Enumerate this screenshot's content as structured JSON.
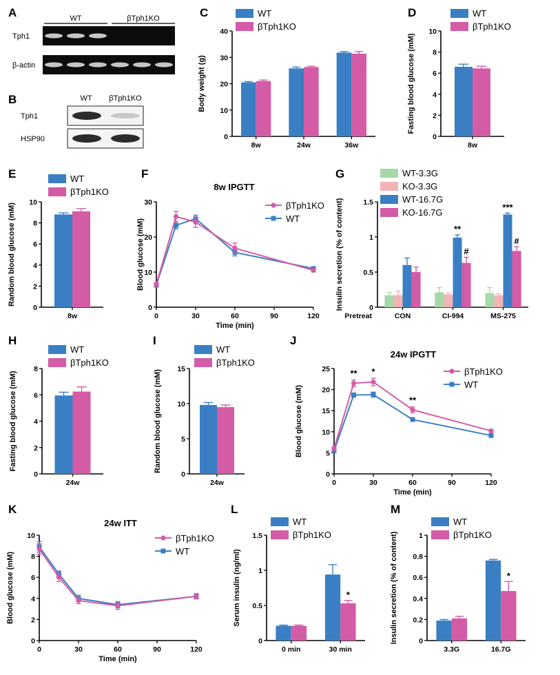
{
  "colors": {
    "wt": "#3a7fc4",
    "ko": "#d45ba6",
    "wt_low": "#a8d8a8",
    "ko_low": "#f2b4b4",
    "axis": "#000000"
  },
  "blots": [
    {
      "panel": "A",
      "groups": [
        "WT",
        "βTph1KO"
      ],
      "rows": [
        "Tph1",
        "β-actin"
      ],
      "lanes": [
        [
          true,
          true,
          true,
          false,
          false,
          false
        ],
        [
          true,
          true,
          true,
          true,
          true,
          true
        ]
      ]
    },
    {
      "panel": "B",
      "groups": [
        "WT",
        "βTph1KO"
      ],
      "rows": [
        "Tph1",
        "HSP90"
      ],
      "lanes": [
        [
          true,
          "faint"
        ],
        [
          true,
          true
        ]
      ]
    }
  ],
  "chart_data": [
    {
      "id": "C",
      "panel": "C",
      "type": "bar",
      "title": "",
      "xlabel": "",
      "ylabel": "Body weight (g)",
      "ylim": [
        0,
        40
      ],
      "yticks": [
        0,
        10,
        20,
        30,
        40
      ],
      "categories": [
        "8w",
        "24w",
        "36w"
      ],
      "legend": {
        "placement": "top-left",
        "entries": [
          "WT",
          "βTph1KO"
        ]
      },
      "series": [
        {
          "name": "WT",
          "color": "wt",
          "values": [
            20.5,
            25.8,
            31.8
          ],
          "errors": [
            0.3,
            0.5,
            0.4
          ]
        },
        {
          "name": "βTph1KO",
          "color": "ko",
          "values": [
            21.0,
            26.3,
            31.4
          ],
          "errors": [
            0.4,
            0.3,
            0.8
          ]
        }
      ],
      "annotations": []
    },
    {
      "id": "D",
      "panel": "D",
      "type": "bar",
      "title": "",
      "xlabel": "",
      "ylabel": "Fasting blood glucose (mM)",
      "ylim": [
        0,
        10
      ],
      "yticks": [
        0,
        2,
        4,
        6,
        8,
        10
      ],
      "categories": [
        "8w"
      ],
      "legend": {
        "placement": "top-left",
        "entries": [
          "WT",
          "βTph1KO"
        ]
      },
      "series": [
        {
          "name": "WT",
          "color": "wt",
          "values": [
            6.6
          ],
          "errors": [
            0.25
          ]
        },
        {
          "name": "βTph1KO",
          "color": "ko",
          "values": [
            6.45
          ],
          "errors": [
            0.2
          ]
        }
      ],
      "annotations": []
    },
    {
      "id": "E",
      "panel": "E",
      "type": "bar",
      "title": "",
      "xlabel": "",
      "ylabel": "Random blood glucose (mM)",
      "ylim": [
        0,
        10
      ],
      "yticks": [
        0,
        2,
        4,
        6,
        8,
        10
      ],
      "categories": [
        "8w"
      ],
      "legend": {
        "placement": "top-left",
        "entries": [
          "WT",
          "βTph1KO"
        ]
      },
      "series": [
        {
          "name": "WT",
          "color": "wt",
          "values": [
            8.8
          ],
          "errors": [
            0.15
          ]
        },
        {
          "name": "βTph1KO",
          "color": "ko",
          "values": [
            9.1
          ],
          "errors": [
            0.25
          ]
        }
      ],
      "annotations": []
    },
    {
      "id": "F",
      "panel": "F",
      "type": "line",
      "title": "8w  IPGTT",
      "xlabel": "Time (min)",
      "ylabel": "Blood glucose (mM)",
      "xlim": [
        0,
        120
      ],
      "xticks": [
        0,
        30,
        60,
        90,
        120
      ],
      "ylim": [
        0,
        30
      ],
      "yticks": [
        0,
        10,
        20,
        30
      ],
      "legend": {
        "placement": "top-right",
        "entries": [
          "βTph1KO",
          "WT"
        ]
      },
      "series": [
        {
          "name": "βTph1KO",
          "color": "ko",
          "marker": "circle",
          "x": [
            0,
            15,
            30,
            60,
            120
          ],
          "y": [
            6.5,
            25.8,
            24.2,
            16.8,
            10.5
          ],
          "errors": [
            0.5,
            1.5,
            1.5,
            1.5,
            0.5
          ]
        },
        {
          "name": "WT",
          "color": "wt",
          "marker": "square",
          "x": [
            0,
            15,
            30,
            60,
            120
          ],
          "y": [
            6.3,
            23.3,
            25.2,
            15.6,
            11.0
          ],
          "errors": [
            0.5,
            1.0,
            1.0,
            1.0,
            0.5
          ]
        }
      ],
      "annotations": []
    },
    {
      "id": "G",
      "panel": "G",
      "type": "bar",
      "title": "",
      "xlabel": "",
      "ylabel": "Insulin secretion (% of content)",
      "ylim": [
        0,
        1.5
      ],
      "yticks": [
        0.0,
        0.5,
        1.0,
        1.5
      ],
      "categories": [
        "CON",
        "CI-994",
        "MS-275"
      ],
      "row_label": "Pretreat",
      "legend": {
        "placement": "top-left",
        "entries": [
          "WT-3.3G",
          "KO-3.3G",
          "WT-16.7G",
          "KO-16.7G"
        ]
      },
      "series": [
        {
          "name": "WT-3.3G",
          "color": "wt_low",
          "values": [
            0.17,
            0.21,
            0.2
          ],
          "errors": [
            0.04,
            0.07,
            0.08
          ]
        },
        {
          "name": "KO-3.3G",
          "color": "ko_low",
          "values": [
            0.17,
            0.18,
            0.17
          ],
          "errors": [
            0.06,
            0.02,
            0.02
          ]
        },
        {
          "name": "WT-16.7G",
          "color": "wt",
          "values": [
            0.6,
            0.99,
            1.32
          ],
          "errors": [
            0.1,
            0.04,
            0.02
          ]
        },
        {
          "name": "KO-16.7G",
          "color": "ko",
          "values": [
            0.5,
            0.63,
            0.8
          ],
          "errors": [
            0.07,
            0.08,
            0.06
          ]
        }
      ],
      "annotations": [
        {
          "category": 1,
          "series": 2,
          "text": "**"
        },
        {
          "category": 1,
          "series": 3,
          "text": "#"
        },
        {
          "category": 2,
          "series": 2,
          "text": "***"
        },
        {
          "category": 2,
          "series": 3,
          "text": "#"
        }
      ]
    },
    {
      "id": "H",
      "panel": "H",
      "type": "bar",
      "title": "",
      "xlabel": "",
      "ylabel": "Fasting blood glucose (mM)",
      "ylim": [
        0,
        8
      ],
      "yticks": [
        0,
        2,
        4,
        6,
        8
      ],
      "categories": [
        "24w"
      ],
      "legend": {
        "placement": "top-left",
        "entries": [
          "WT",
          "βTph1KO"
        ]
      },
      "series": [
        {
          "name": "WT",
          "color": "wt",
          "values": [
            5.95
          ],
          "errors": [
            0.25
          ]
        },
        {
          "name": "βTph1KO",
          "color": "ko",
          "values": [
            6.25
          ],
          "errors": [
            0.35
          ]
        }
      ],
      "annotations": []
    },
    {
      "id": "I",
      "panel": "I",
      "type": "bar",
      "title": "",
      "xlabel": "",
      "ylabel": "Random blood glucose (mM)",
      "ylim": [
        0,
        15
      ],
      "yticks": [
        0,
        5,
        10,
        15
      ],
      "categories": [
        "24w"
      ],
      "legend": {
        "placement": "top-left",
        "entries": [
          "WT",
          "βTph1KO"
        ]
      },
      "series": [
        {
          "name": "WT",
          "color": "wt",
          "values": [
            9.8
          ],
          "errors": [
            0.35
          ]
        },
        {
          "name": "βTph1KO",
          "color": "ko",
          "values": [
            9.5
          ],
          "errors": [
            0.3
          ]
        }
      ],
      "annotations": []
    },
    {
      "id": "J",
      "panel": "J",
      "type": "line",
      "title": "24w  IPGTT",
      "xlabel": "Time (min)",
      "ylabel": "Blood glucose (mM)",
      "xlim": [
        0,
        120
      ],
      "xticks": [
        0,
        30,
        60,
        90,
        120
      ],
      "ylim": [
        0,
        25
      ],
      "yticks": [
        0,
        5,
        10,
        15,
        20,
        25
      ],
      "legend": {
        "placement": "top-right",
        "entries": [
          "βTph1KO",
          "WT"
        ]
      },
      "series": [
        {
          "name": "βTph1KO",
          "color": "ko",
          "marker": "circle",
          "x": [
            0,
            15,
            30,
            60,
            120
          ],
          "y": [
            6.0,
            21.5,
            21.8,
            15.2,
            10.2
          ],
          "errors": [
            0.4,
            0.8,
            0.9,
            0.7,
            0.3
          ]
        },
        {
          "name": "WT",
          "color": "wt",
          "marker": "square",
          "x": [
            0,
            15,
            30,
            60,
            120
          ],
          "y": [
            5.5,
            18.7,
            18.8,
            12.9,
            9.1
          ],
          "errors": [
            0.4,
            0.5,
            0.6,
            0.3,
            0.4
          ]
        }
      ],
      "annotations": [
        {
          "x": 15,
          "text": "**"
        },
        {
          "x": 30,
          "text": "*"
        },
        {
          "x": 60,
          "text": "**"
        }
      ]
    },
    {
      "id": "K",
      "panel": "K",
      "type": "line",
      "title": "24w  ITT",
      "xlabel": "Time (min)",
      "ylabel": "Blood glucose (mM)",
      "xlim": [
        0,
        120
      ],
      "xticks": [
        0,
        30,
        60,
        90,
        120
      ],
      "ylim": [
        0,
        10
      ],
      "yticks": [
        0,
        2,
        4,
        6,
        8,
        10
      ],
      "legend": {
        "placement": "top-right",
        "entries": [
          "βTph1KO",
          "WT"
        ]
      },
      "series": [
        {
          "name": "βTph1KO",
          "color": "ko",
          "marker": "circle",
          "x": [
            0,
            15,
            30,
            60,
            120
          ],
          "y": [
            8.7,
            6.0,
            3.8,
            3.3,
            4.2
          ],
          "errors": [
            0.5,
            0.4,
            0.3,
            0.35,
            0.25
          ]
        },
        {
          "name": "WT",
          "color": "wt",
          "marker": "square",
          "x": [
            0,
            15,
            30,
            60,
            120
          ],
          "y": [
            8.9,
            6.3,
            4.0,
            3.4,
            4.2
          ],
          "errors": [
            0.5,
            0.3,
            0.3,
            0.3,
            0.25
          ]
        }
      ],
      "annotations": []
    },
    {
      "id": "L",
      "panel": "L",
      "type": "bar",
      "title": "",
      "xlabel": "",
      "ylabel": "Serum insulin (ng/ml)",
      "ylim": [
        0,
        1.5
      ],
      "yticks": [
        0.0,
        0.5,
        1.0,
        1.5
      ],
      "categories": [
        "0 min",
        "30 min"
      ],
      "legend": {
        "placement": "top-left",
        "entries": [
          "WT",
          "βTph1KO"
        ]
      },
      "series": [
        {
          "name": "WT",
          "color": "wt",
          "values": [
            0.21,
            0.94
          ],
          "errors": [
            0.01,
            0.14
          ]
        },
        {
          "name": "βTph1KO",
          "color": "ko",
          "values": [
            0.21,
            0.53
          ],
          "errors": [
            0.01,
            0.04
          ]
        }
      ],
      "annotations": [
        {
          "category": 1,
          "series": 1,
          "text": "*"
        }
      ]
    },
    {
      "id": "M",
      "panel": "M",
      "type": "bar",
      "title": "",
      "xlabel": "",
      "ylabel": "Insulin secretion (% of content)",
      "ylim": [
        0,
        1.0
      ],
      "yticks": [
        0.0,
        0.2,
        0.4,
        0.6,
        0.8,
        1.0
      ],
      "categories": [
        "3.3G",
        "16.7G"
      ],
      "legend": {
        "placement": "top-left",
        "entries": [
          "WT",
          "βTph1KO"
        ]
      },
      "series": [
        {
          "name": "WT",
          "color": "wt",
          "values": [
            0.19,
            0.76
          ],
          "errors": [
            0.01,
            0.01
          ]
        },
        {
          "name": "βTph1KO",
          "color": "ko",
          "values": [
            0.21,
            0.47
          ],
          "errors": [
            0.02,
            0.09
          ]
        }
      ],
      "annotations": [
        {
          "category": 1,
          "series": 1,
          "text": "*"
        }
      ]
    }
  ]
}
